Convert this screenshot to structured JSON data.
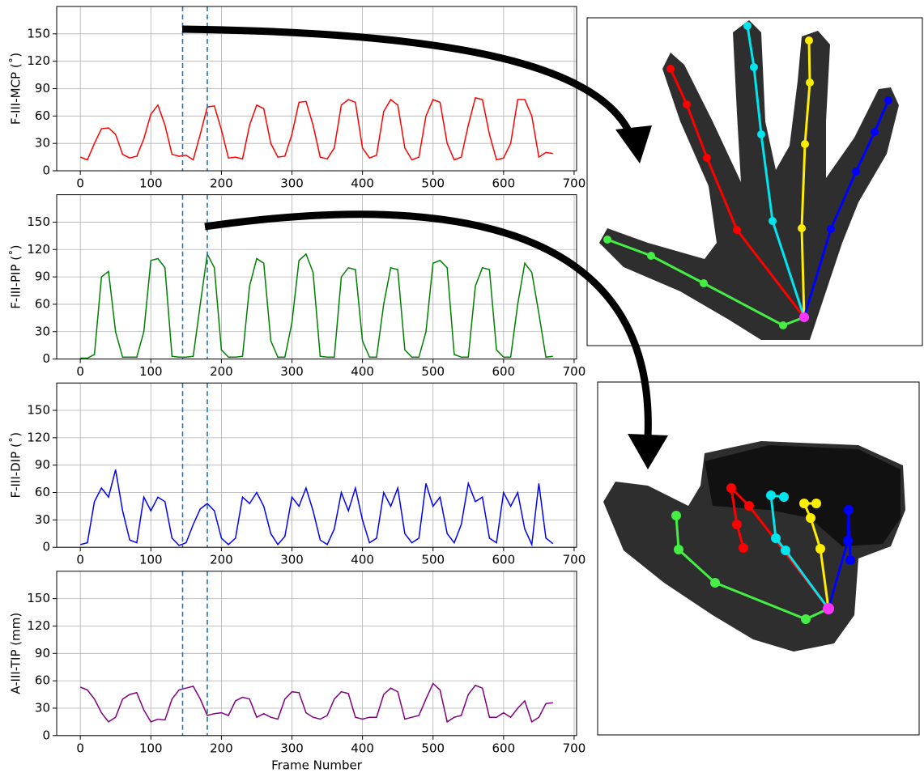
{
  "chart_data": [
    {
      "type": "line",
      "y_label": "F-III-MCP (˚)",
      "color": "#ff0000",
      "xlim": [
        -33.5,
        703.5
      ],
      "ylim": [
        0,
        180
      ],
      "xticks": [
        0,
        100,
        200,
        300,
        400,
        500,
        600,
        700
      ],
      "yticks": [
        0,
        30,
        60,
        90,
        120,
        150
      ],
      "grid": true,
      "vlines": [
        145,
        180
      ],
      "vline_color": "#1f77b4",
      "x": [
        0,
        10,
        20,
        30,
        40,
        50,
        60,
        70,
        80,
        90,
        100,
        110,
        120,
        130,
        140,
        150,
        160,
        170,
        180,
        190,
        200,
        210,
        220,
        230,
        240,
        250,
        260,
        270,
        280,
        290,
        300,
        310,
        320,
        330,
        340,
        350,
        360,
        370,
        380,
        390,
        400,
        410,
        420,
        430,
        440,
        450,
        460,
        470,
        480,
        490,
        500,
        510,
        520,
        530,
        540,
        550,
        560,
        570,
        580,
        590,
        600,
        610,
        620,
        630,
        640,
        650,
        660,
        670
      ],
      "values": [
        15,
        12,
        30,
        46,
        47,
        40,
        18,
        14,
        16,
        35,
        62,
        72,
        50,
        18,
        16,
        17,
        12,
        40,
        70,
        71,
        45,
        14,
        15,
        13,
        50,
        72,
        68,
        30,
        15,
        16,
        40,
        75,
        76,
        50,
        15,
        13,
        25,
        72,
        78,
        75,
        25,
        14,
        17,
        65,
        78,
        72,
        25,
        12,
        15,
        60,
        78,
        75,
        30,
        12,
        15,
        50,
        80,
        78,
        40,
        12,
        14,
        30,
        78,
        78,
        60,
        15,
        20,
        19
      ]
    },
    {
      "type": "line",
      "y_label": "F-III-PIP (˚)",
      "color": "#008000",
      "xlim": [
        -33.5,
        703.5
      ],
      "ylim": [
        0,
        180
      ],
      "xticks": [
        0,
        100,
        200,
        300,
        400,
        500,
        600,
        700
      ],
      "yticks": [
        0,
        30,
        60,
        90,
        120,
        150
      ],
      "grid": true,
      "vlines": [
        145,
        180
      ],
      "vline_color": "#1f77b4",
      "x": [
        0,
        10,
        20,
        30,
        40,
        50,
        60,
        70,
        80,
        90,
        100,
        110,
        120,
        130,
        140,
        150,
        160,
        170,
        180,
        190,
        200,
        210,
        220,
        230,
        240,
        250,
        260,
        270,
        280,
        290,
        300,
        310,
        320,
        330,
        340,
        350,
        360,
        370,
        380,
        390,
        400,
        410,
        420,
        430,
        440,
        450,
        460,
        470,
        480,
        490,
        500,
        510,
        520,
        530,
        540,
        550,
        560,
        570,
        580,
        590,
        600,
        610,
        620,
        630,
        640,
        650,
        660,
        670
      ],
      "values": [
        1,
        1,
        5,
        90,
        96,
        30,
        2,
        2,
        2,
        30,
        108,
        110,
        100,
        3,
        2,
        2,
        3,
        60,
        115,
        100,
        10,
        2,
        2,
        3,
        80,
        110,
        105,
        20,
        2,
        2,
        40,
        108,
        115,
        95,
        3,
        2,
        2,
        90,
        100,
        98,
        20,
        2,
        2,
        60,
        100,
        98,
        10,
        2,
        2,
        30,
        105,
        108,
        100,
        5,
        2,
        2,
        80,
        100,
        98,
        10,
        2,
        2,
        60,
        105,
        95,
        50,
        2,
        3
      ]
    },
    {
      "type": "line",
      "y_label": "F-III-DIP (˚)",
      "color": "#0000ff",
      "xlim": [
        -33.5,
        703.5
      ],
      "ylim": [
        0,
        180
      ],
      "xticks": [
        0,
        100,
        200,
        300,
        400,
        500,
        600,
        700
      ],
      "yticks": [
        0,
        30,
        60,
        90,
        120,
        150
      ],
      "grid": true,
      "vlines": [
        145,
        180
      ],
      "vline_color": "#1f77b4",
      "x": [
        0,
        10,
        20,
        30,
        40,
        50,
        60,
        70,
        80,
        90,
        100,
        110,
        120,
        130,
        140,
        150,
        160,
        170,
        180,
        190,
        200,
        210,
        220,
        230,
        240,
        250,
        260,
        270,
        280,
        290,
        300,
        310,
        320,
        330,
        340,
        350,
        360,
        370,
        380,
        390,
        400,
        410,
        420,
        430,
        440,
        450,
        460,
        470,
        480,
        490,
        500,
        510,
        520,
        530,
        540,
        550,
        560,
        570,
        580,
        590,
        600,
        610,
        620,
        630,
        640,
        650,
        660,
        670
      ],
      "values": [
        3,
        5,
        50,
        65,
        55,
        85,
        40,
        8,
        5,
        55,
        40,
        55,
        50,
        10,
        2,
        5,
        25,
        42,
        48,
        40,
        10,
        3,
        10,
        55,
        48,
        60,
        45,
        15,
        3,
        12,
        55,
        45,
        65,
        40,
        8,
        3,
        20,
        60,
        40,
        65,
        30,
        5,
        10,
        60,
        45,
        65,
        15,
        5,
        10,
        70,
        45,
        55,
        15,
        5,
        25,
        70,
        50,
        55,
        10,
        5,
        60,
        45,
        60,
        20,
        3,
        70,
        10,
        4
      ]
    },
    {
      "type": "line",
      "y_label": "A-III-TIP (mm)",
      "x_label": "Frame Number",
      "color": "#800080",
      "xlim": [
        -33.5,
        703.5
      ],
      "ylim": [
        0,
        180
      ],
      "xticks": [
        0,
        100,
        200,
        300,
        400,
        500,
        600,
        700
      ],
      "yticks": [
        0,
        30,
        60,
        90,
        120,
        150
      ],
      "grid": true,
      "vlines": [
        145,
        180
      ],
      "vline_color": "#1f77b4",
      "x": [
        0,
        10,
        20,
        30,
        40,
        50,
        60,
        70,
        80,
        90,
        100,
        110,
        120,
        130,
        140,
        150,
        160,
        170,
        180,
        190,
        200,
        210,
        220,
        230,
        240,
        250,
        260,
        270,
        280,
        290,
        300,
        310,
        320,
        330,
        340,
        350,
        360,
        370,
        380,
        390,
        400,
        410,
        420,
        430,
        440,
        450,
        460,
        470,
        480,
        490,
        500,
        510,
        520,
        530,
        540,
        550,
        560,
        570,
        580,
        590,
        600,
        610,
        620,
        630,
        640,
        650,
        660,
        670
      ],
      "values": [
        53,
        50,
        40,
        25,
        15,
        20,
        40,
        45,
        47,
        28,
        15,
        18,
        17,
        40,
        50,
        52,
        54,
        40,
        22,
        24,
        25,
        22,
        38,
        42,
        40,
        20,
        24,
        20,
        18,
        40,
        48,
        47,
        25,
        20,
        18,
        22,
        40,
        48,
        46,
        20,
        18,
        20,
        20,
        45,
        52,
        48,
        18,
        20,
        22,
        40,
        57,
        50,
        15,
        20,
        22,
        45,
        55,
        52,
        20,
        20,
        25,
        20,
        30,
        38,
        15,
        20,
        35,
        36
      ]
    }
  ]
}
